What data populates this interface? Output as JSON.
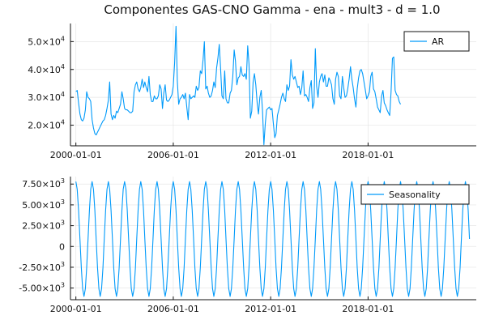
{
  "title": "Componentes GAS-CNO Gamma - ena - mult3 - d = 1.0",
  "colors": {
    "series": "#009AFA"
  },
  "chart_data": [
    {
      "type": "line",
      "title": "Componentes GAS-CNO Gamma - ena - mult3 - d = 1.0",
      "xlabel": "",
      "ylabel": "",
      "grid": true,
      "legend_position": "top-right",
      "xlim": [
        "1999-09-01",
        "2024-09-01"
      ],
      "ylim": [
        12600,
        56500
      ],
      "x_tick_labels": [
        "2000-01-01",
        "2006-01-01",
        "2012-01-01",
        "2018-01-01"
      ],
      "y_ticks": [
        {
          "value": 20000,
          "mantissa": "2.0×10",
          "exponent": "4"
        },
        {
          "value": 30000,
          "mantissa": "3.0×10",
          "exponent": "4"
        },
        {
          "value": 40000,
          "mantissa": "4.0×10",
          "exponent": "4"
        },
        {
          "value": 50000,
          "mantissa": "5.0×10",
          "exponent": "4"
        }
      ],
      "series": [
        {
          "name": "AR",
          "x_start": "2000-01-01",
          "frequency": "monthly",
          "values": [
            32000,
            32500,
            28000,
            24000,
            22000,
            21500,
            22500,
            25500,
            32000,
            30000,
            29500,
            28500,
            22000,
            19000,
            17000,
            16500,
            17500,
            18500,
            19500,
            20500,
            21500,
            22000,
            23500,
            26000,
            29000,
            35500,
            24000,
            22000,
            23500,
            22500,
            25000,
            24500,
            26000,
            27500,
            32000,
            29500,
            26000,
            25500,
            25500,
            25000,
            24500,
            24500,
            25000,
            32000,
            34500,
            35500,
            33000,
            32000,
            33500,
            36500,
            33500,
            35500,
            33500,
            32000,
            37500,
            31000,
            28500,
            28500,
            30500,
            29500,
            29500,
            30500,
            34500,
            33000,
            26000,
            31500,
            34500,
            29000,
            28500,
            29000,
            30000,
            31000,
            34000,
            42500,
            55500,
            36000,
            27500,
            29500,
            30000,
            31000,
            29500,
            31500,
            26500,
            22000,
            31000,
            29500,
            30000,
            30500,
            30000,
            34000,
            32500,
            33500,
            39500,
            38500,
            43500,
            50000,
            33000,
            34000,
            31500,
            30000,
            30500,
            32500,
            35500,
            33500,
            40500,
            44000,
            49000,
            40000,
            30500,
            29500,
            39500,
            29500,
            28000,
            28000,
            31500,
            32500,
            37500,
            47000,
            43000,
            34500,
            37000,
            37500,
            41000,
            38000,
            37500,
            38500,
            36500,
            48500,
            42000,
            22500,
            25000,
            35500,
            38500,
            34500,
            28000,
            24000,
            30000,
            32500,
            25000,
            13000,
            20500,
            25500,
            26000,
            26500,
            25500,
            26000,
            20500,
            15500,
            17000,
            23500,
            25500,
            27500,
            30000,
            31500,
            29500,
            28500,
            34500,
            32500,
            34000,
            43500,
            38000,
            36500,
            37500,
            35500,
            33500,
            34000,
            31000,
            33500,
            39500,
            30500,
            31000,
            30000,
            28500,
            33500,
            36000,
            26000,
            28000,
            47500,
            34000,
            30000,
            35500,
            37500,
            38500,
            35500,
            38000,
            34000,
            34000,
            37000,
            36000,
            34500,
            29500,
            27500,
            36500,
            39000,
            37500,
            30500,
            29500,
            37500,
            33500,
            30000,
            30500,
            33000,
            36500,
            41000,
            36500,
            33500,
            29500,
            26500,
            33000,
            37000,
            39500,
            40000,
            38500,
            35500,
            32500,
            29500,
            30500,
            32000,
            37500,
            39000,
            33000,
            32000,
            29500,
            26500,
            25500,
            24500,
            30500,
            32500,
            28000,
            27000,
            25500,
            24500,
            23500,
            32000,
            44000,
            44500,
            32500,
            31000,
            30500,
            28500,
            27500
          ]
        }
      ]
    },
    {
      "type": "line",
      "title": "",
      "xlabel": "",
      "ylabel": "",
      "grid": true,
      "legend_position": "top-right",
      "xlim": [
        "1999-09-01",
        "2024-09-01"
      ],
      "ylim": [
        -6400,
        8400
      ],
      "x_tick_labels": [
        "2000-01-01",
        "2006-01-01",
        "2012-01-01",
        "2018-01-01"
      ],
      "y_ticks": [
        {
          "value": 7500,
          "mantissa": "7.50×10",
          "exponent": "3"
        },
        {
          "value": 5000,
          "mantissa": "5.00×10",
          "exponent": "3"
        },
        {
          "value": 2500,
          "mantissa": "2.50×10",
          "exponent": "3"
        },
        {
          "value": 0,
          "mantissa": "0",
          "exponent": ""
        },
        {
          "value": -2500,
          "mantissa": "-2.50×10",
          "exponent": "3"
        },
        {
          "value": -5000,
          "mantissa": "-5.00×10",
          "exponent": "3"
        }
      ],
      "series": [
        {
          "name": "Seasonality",
          "x_start": "2000-01-01",
          "frequency": "monthly",
          "period_months": 12,
          "amplitude": 6900,
          "offset": 900,
          "peak_month_index": 0,
          "min": -6000,
          "max": 7800
        }
      ]
    }
  ]
}
